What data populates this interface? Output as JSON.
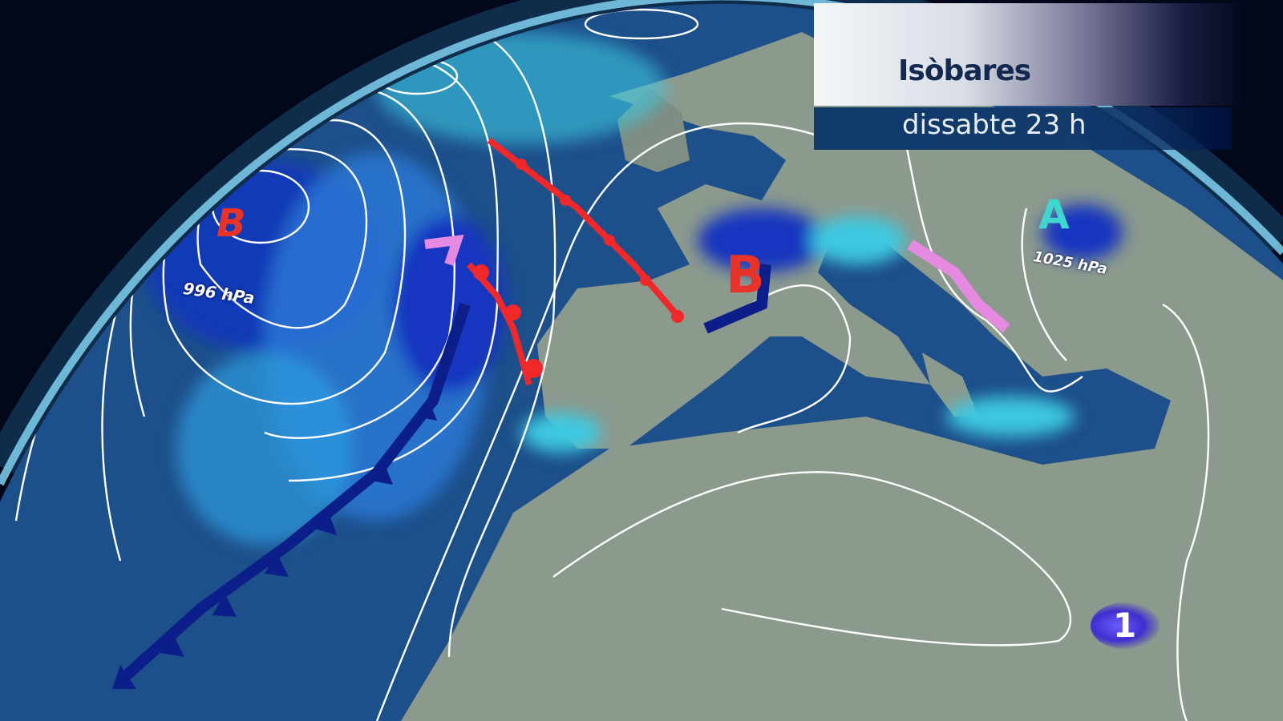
{
  "header": {
    "title": "Isòbares",
    "subtitle": "dissabte 23 h"
  },
  "map": {
    "pressure_centers": [
      {
        "type": "low",
        "symbol": "B",
        "label": "996 hPa",
        "color": "#e8332a"
      },
      {
        "type": "low",
        "symbol": "B",
        "label": "",
        "color": "#e8332a"
      },
      {
        "type": "high",
        "symbol": "A",
        "label": "1025 hPa",
        "color": "#3fd6d0"
      }
    ],
    "fronts": [
      "warm-front",
      "occluded-front",
      "cold-front",
      "trough"
    ],
    "colors": {
      "ocean": "#1d4f8a",
      "land": "#8c9a8e",
      "rain_light": "#3cc8e0",
      "rain_heavy": "#1436c0",
      "isobar": "#ffffff",
      "warm_front": "#f0282a",
      "cold_front": "#0c1e8a",
      "trough": "#e58ae0"
    }
  },
  "logo": {
    "text": "1"
  }
}
